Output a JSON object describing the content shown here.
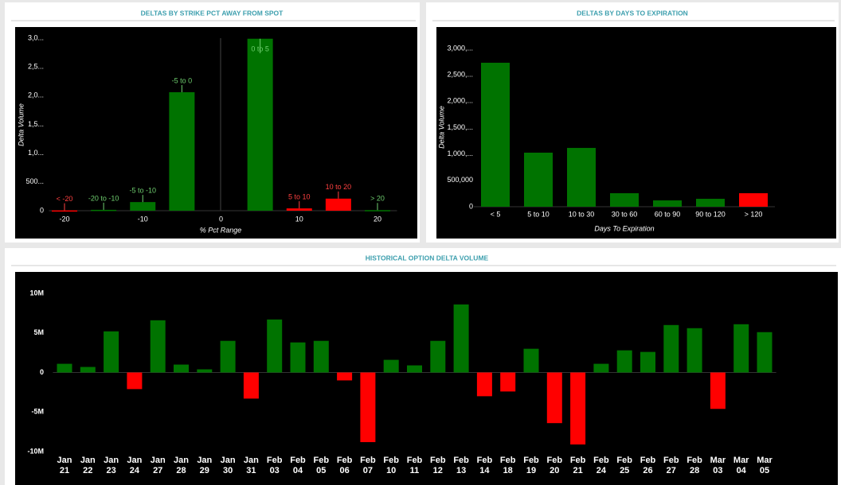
{
  "chart_data": [
    {
      "type": "bar",
      "title": "DELTAS BY STRIKE PCT AWAY FROM SPOT",
      "x_label": "% Pct Range",
      "y_label": "Delta Volume",
      "x": [
        -20,
        -15,
        -10,
        -5,
        5,
        10,
        15,
        20
      ],
      "categories": [
        "< -20",
        "-20 to -10",
        "-5 to -10",
        "-5 to 0",
        "0 to 5",
        "5 to 10",
        "10 to 20",
        "> 20"
      ],
      "values": [
        5000,
        15000,
        150000,
        2060000,
        2990000,
        40000,
        210000,
        10000
      ],
      "colors": [
        "#ff0000",
        "#007300",
        "#007300",
        "#007300",
        "#007300",
        "#ff0000",
        "#ff0000",
        "#007300"
      ],
      "xlim": [
        -22,
        22.5
      ],
      "xticks": [
        -20,
        -10,
        0,
        10,
        20
      ],
      "ylim": [
        0,
        3000000
      ],
      "yticks": [
        0,
        {
          "value": 500000,
          "label": "500..."
        },
        {
          "value": 1000000,
          "label": "1,0..."
        },
        {
          "value": 1500000,
          "label": "1,5..."
        },
        {
          "value": 2000000,
          "label": "2,0..."
        },
        {
          "value": 2500000,
          "label": "2,5..."
        },
        {
          "value": 3000000,
          "label": "3,0..."
        }
      ]
    },
    {
      "type": "bar",
      "title": "DELTAS BY DAYS TO EXPIRATION",
      "x_label": "Days To Expiration",
      "y_label": "Delta Volume",
      "categories": [
        "< 5",
        "5 to 10",
        "10 to 30",
        "30 to 60",
        "60 to 90",
        "90 to 120",
        "> 120"
      ],
      "values": [
        2730000,
        1025000,
        1115000,
        256000,
        120000,
        150000,
        256000
      ],
      "colors": [
        "#007300",
        "#007300",
        "#007300",
        "#007300",
        "#007300",
        "#007300",
        "#ff0000"
      ],
      "ylim": [
        0,
        3000000
      ],
      "yticks": [
        0,
        {
          "value": 500000,
          "label": "500,000"
        },
        {
          "value": 1000000,
          "label": "1,000,..."
        },
        {
          "value": 1500000,
          "label": "1,500,..."
        },
        {
          "value": 2000000,
          "label": "2,000,..."
        },
        {
          "value": 2500000,
          "label": "2,500,..."
        },
        {
          "value": 3000000,
          "label": "3,000,..."
        }
      ]
    },
    {
      "type": "bar",
      "title": "HISTORICAL OPTION DELTA VOLUME",
      "categories": [
        "Jan 21",
        "Jan 22",
        "Jan 23",
        "Jan 24",
        "Jan 27",
        "Jan 28",
        "Jan 29",
        "Jan 30",
        "Jan 31",
        "Feb 03",
        "Feb 04",
        "Feb 05",
        "Feb 06",
        "Feb 07",
        "Feb 10",
        "Feb 11",
        "Feb 12",
        "Feb 13",
        "Feb 14",
        "Feb 18",
        "Feb 19",
        "Feb 20",
        "Feb 21",
        "Feb 24",
        "Feb 25",
        "Feb 26",
        "Feb 27",
        "Feb 28",
        "Mar 03",
        "Mar 04",
        "Mar 05"
      ],
      "values": [
        1100000,
        700000,
        5200000,
        -2100000,
        6600000,
        1000000,
        400000,
        4000000,
        -3300000,
        6700000,
        3800000,
        4000000,
        -1000000,
        -8800000,
        1600000,
        900000,
        4000000,
        8600000,
        -3000000,
        -2400000,
        3000000,
        -6400000,
        -9100000,
        1100000,
        2800000,
        2600000,
        6000000,
        5600000,
        -4600000,
        6100000,
        5100000
      ],
      "positive_color": "#007300",
      "negative_color": "#ff0000",
      "ylim": [
        -10000000,
        10000000
      ],
      "yticks": [
        {
          "value": -10000000,
          "label": "-10M"
        },
        {
          "value": -5000000,
          "label": "-5M"
        },
        0,
        {
          "value": 5000000,
          "label": "5M"
        },
        {
          "value": 10000000,
          "label": "10M"
        }
      ]
    }
  ]
}
